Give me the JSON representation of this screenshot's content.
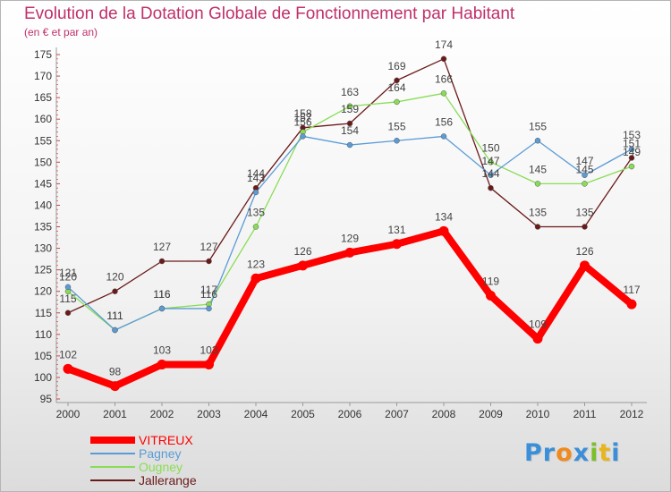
{
  "title": "Evolution de la Dotation Globale de Fonctionnement par Habitant",
  "subtitle": "(en € et par an)",
  "logo": {
    "letters": [
      "P",
      "r",
      "o",
      "x",
      "i",
      "t",
      "i"
    ],
    "colors": [
      "#3a8fd8",
      "#3a8fd8",
      "#f08a1e",
      "#3a8fd8",
      "#7cbf2a",
      "#e8b61c",
      "#3a8fd8"
    ]
  },
  "chart_data": {
    "type": "line",
    "x": [
      "2000",
      "2001",
      "2002",
      "2003",
      "2004",
      "2005",
      "2006",
      "2007",
      "2008",
      "2009",
      "2010",
      "2011",
      "2012"
    ],
    "ylim": [
      95,
      175
    ],
    "yticks": [
      95,
      100,
      105,
      110,
      115,
      120,
      125,
      130,
      135,
      140,
      145,
      150,
      155,
      160,
      165,
      170,
      175
    ],
    "series": [
      {
        "name": "Jallerange",
        "color": "#6b1a1a",
        "width": 1.3,
        "values": [
          115,
          120,
          127,
          127,
          144,
          158,
          159,
          169,
          174,
          144,
          135,
          135,
          151
        ],
        "labels": [
          "115",
          "120",
          "127",
          "127",
          "144",
          "158",
          "159",
          "169",
          "174",
          "144",
          "135",
          "135",
          "151"
        ]
      },
      {
        "name": "Ougney",
        "color": "#88dd55",
        "width": 1.3,
        "values": [
          120,
          111,
          116,
          117,
          135,
          157,
          163,
          164,
          166,
          150,
          145,
          145,
          149
        ],
        "labels": [
          "120",
          "111",
          "116",
          "117",
          "135",
          "157",
          "163",
          "164",
          "166",
          "150",
          "145",
          "145",
          "149"
        ]
      },
      {
        "name": "Pagney",
        "color": "#5b9bd5",
        "width": 1.3,
        "values": [
          121,
          111,
          116,
          116,
          143,
          156,
          154,
          155,
          156,
          147,
          155,
          147,
          153
        ],
        "labels": [
          "121",
          "111",
          "116",
          "116",
          "143",
          "156",
          "154",
          "155",
          "156",
          "147",
          "155",
          "147",
          "153"
        ]
      },
      {
        "name": "VITREUX",
        "color": "#ff0000",
        "width": 8,
        "values": [
          102,
          98,
          103,
          103,
          123,
          126,
          129,
          131,
          134,
          119,
          109,
          126,
          117
        ],
        "labels": [
          "102",
          "98",
          "103",
          "103",
          "123",
          "126",
          "129",
          "131",
          "134",
          "119",
          "109",
          "126",
          "117"
        ]
      }
    ]
  }
}
